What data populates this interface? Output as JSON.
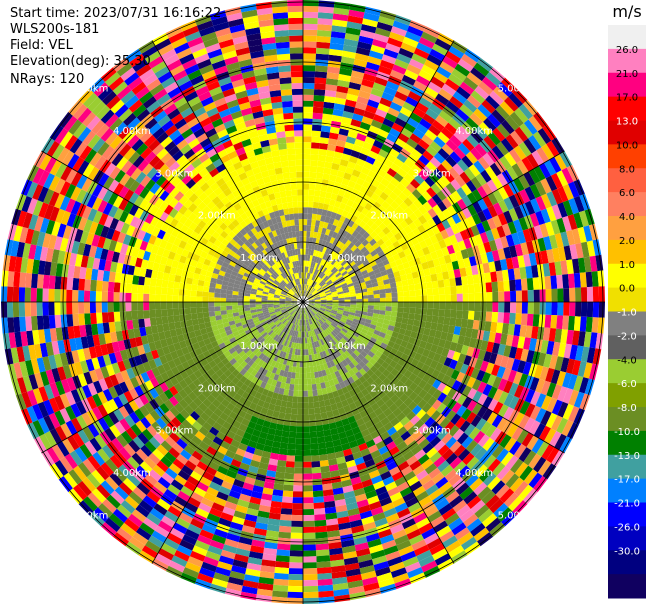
{
  "header": {
    "start_time": "Start time: 2023/07/31 16:16:22",
    "instrument": "WLS200s-181",
    "field": "Field: VEL",
    "elevation": "Elevation(deg): 35.30",
    "nrays": "NRays: 120"
  },
  "colorbar": {
    "unit": "m/s",
    "ticks": [
      "26.0",
      "21.0",
      "17.0",
      "13.0",
      "10.0",
      "8.0",
      "6.0",
      "4.0",
      "2.0",
      "1.0",
      "0.0",
      "-1.0",
      "-2.0",
      "-4.0",
      "-6.0",
      "-8.0",
      "-10.0",
      "-13.0",
      "-17.0",
      "-21.0",
      "-26.0",
      "-30.0"
    ],
    "colors": [
      "#f0f0f0",
      "#ff80c0",
      "#ff0080",
      "#ff0000",
      "#e00000",
      "#ff4000",
      "#ff6040",
      "#ff8060",
      "#ffa040",
      "#ffc000",
      "#ffff00",
      "#f0e000",
      "#808080",
      "#606060",
      "#9acd32",
      "#80a000",
      "#6b8e23",
      "#008000",
      "#40a0a0",
      "#0080ff",
      "#0000ff",
      "#0000c0",
      "#000080",
      "#100060"
    ]
  },
  "chart_data": {
    "type": "ppi",
    "field": "VEL",
    "unit": "m/s",
    "range_rings_km": [
      1.0,
      2.0,
      3.0,
      4.0,
      5.0
    ],
    "ring_labels": [
      "1.00km",
      "2.00km",
      "3.00km",
      "4.00km",
      "5.00km"
    ],
    "nrays": 120,
    "elevation_deg": 35.3,
    "note_rings_visible": "range ring labels printed at NE, NW, SE, SW of each ring"
  }
}
